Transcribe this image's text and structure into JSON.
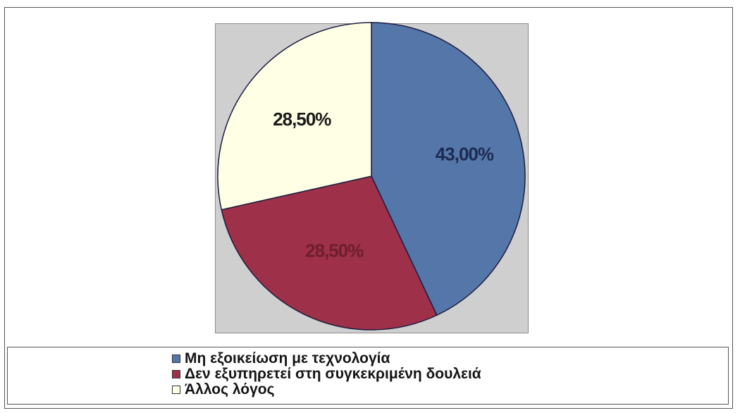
{
  "chart_data": {
    "type": "pie",
    "categories": [
      "Μη εξοικείωση με τεχνολογία",
      "Δεν εξυπηρετεί στη συγκεκριμένη δουλειά",
      "Άλλος λόγος"
    ],
    "values": [
      43.0,
      28.5,
      28.5
    ],
    "data_labels": [
      "43,00%",
      "28,50%",
      "28,50%"
    ],
    "colors": [
      "#5476a8",
      "#9e3049",
      "#ffffe6"
    ],
    "label_colors": [
      "#1d2a52",
      "#6e1e2e",
      "#1a1a1a"
    ],
    "title": "",
    "legend_position": "bottom",
    "plot_background": "#cfcfcf"
  }
}
